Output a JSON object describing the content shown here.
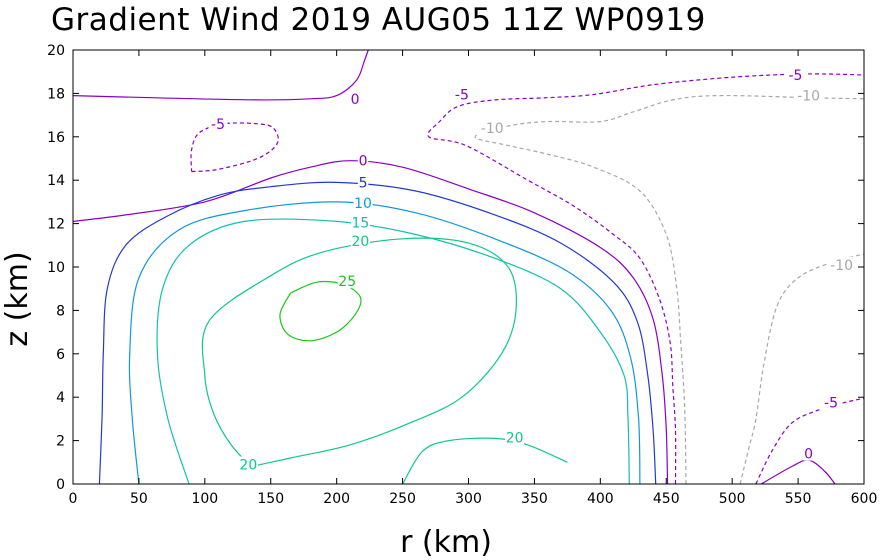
{
  "chart_data": {
    "type": "contour",
    "title": "Gradient Wind 2019 AUG05 11Z   WP0919",
    "xlabel": "r (km)",
    "ylabel": "z (km)",
    "xlim": [
      0,
      600
    ],
    "ylim": [
      0,
      20
    ],
    "xticks": [
      "0",
      "50",
      "100",
      "150",
      "200",
      "250",
      "300",
      "350",
      "400",
      "450",
      "500",
      "550",
      "600"
    ],
    "yticks": [
      "0",
      "2",
      "4",
      "6",
      "8",
      "10",
      "12",
      "14",
      "16",
      "18",
      "20"
    ],
    "contours": [
      {
        "level": 0,
        "label": "0",
        "color": "#8a00c8",
        "dashed": false,
        "points": [
          [
            0,
            12.1
          ],
          [
            40,
            12.4
          ],
          [
            100,
            13
          ],
          [
            150,
            14.1
          ],
          [
            180,
            14.6
          ],
          [
            210,
            14.9
          ],
          [
            250,
            14.6
          ],
          [
            300,
            13.6
          ],
          [
            350,
            12.5
          ],
          [
            400,
            10.9
          ],
          [
            425,
            9.5
          ],
          [
            440,
            7.6
          ],
          [
            447,
            5
          ],
          [
            450,
            2.5
          ],
          [
            451,
            0
          ]
        ]
      },
      {
        "level": 0,
        "label": "0",
        "color": "#8a00c8",
        "dashed": false,
        "points": [
          [
            0,
            17.9
          ],
          [
            60,
            17.8
          ],
          [
            140,
            17.7
          ],
          [
            180,
            17.75
          ],
          [
            200,
            17.9
          ],
          [
            215,
            18.6
          ],
          [
            221,
            19.5
          ],
          [
            224,
            20
          ]
        ]
      },
      {
        "level": 0,
        "label": "0",
        "color": "#8a00c8",
        "dashed": false,
        "points": [
          [
            522,
            0
          ],
          [
            545,
            0.8
          ],
          [
            558,
            1.1
          ],
          [
            570,
            0.6
          ],
          [
            578,
            0
          ]
        ]
      },
      {
        "level": 5,
        "label": "5",
        "color": "#2238d6",
        "dashed": false,
        "points": [
          [
            20,
            0
          ],
          [
            22,
            3
          ],
          [
            23,
            6
          ],
          [
            26,
            9
          ],
          [
            40,
            11
          ],
          [
            70,
            12.3
          ],
          [
            110,
            13.3
          ],
          [
            150,
            13.7
          ],
          [
            200,
            13.9
          ],
          [
            260,
            13.5
          ],
          [
            320,
            12.4
          ],
          [
            370,
            11.1
          ],
          [
            410,
            9.3
          ],
          [
            428,
            7.5
          ],
          [
            436,
            5
          ],
          [
            440,
            2.5
          ],
          [
            442,
            0
          ]
        ]
      },
      {
        "level": 10,
        "label": "10",
        "color": "#0f98e0",
        "dashed": false,
        "points": [
          [
            50,
            0
          ],
          [
            45,
            3
          ],
          [
            43,
            6
          ],
          [
            50,
            9.5
          ],
          [
            80,
            11.7
          ],
          [
            130,
            12.6
          ],
          [
            200,
            13
          ],
          [
            260,
            12.5
          ],
          [
            320,
            11.3
          ],
          [
            375,
            9.8
          ],
          [
            408,
            8
          ],
          [
            423,
            5.8
          ],
          [
            429,
            3
          ],
          [
            430,
            0
          ]
        ]
      },
      {
        "level": 15,
        "label": "15",
        "color": "#12c0b0",
        "dashed": false,
        "points": [
          [
            88,
            0
          ],
          [
            72,
            3
          ],
          [
            64,
            6
          ],
          [
            68,
            9
          ],
          [
            88,
            11
          ],
          [
            130,
            12.1
          ],
          [
            200,
            12.1
          ],
          [
            260,
            11.5
          ],
          [
            320,
            10.4
          ],
          [
            370,
            9
          ],
          [
            400,
            7
          ],
          [
            418,
            5
          ],
          [
            421,
            3
          ],
          [
            422,
            0
          ]
        ]
      },
      {
        "level": 20,
        "label": "20",
        "color": "#10c88a",
        "dashed": false,
        "points": [
          [
            135,
            0.8
          ],
          [
            165,
            1.2
          ],
          [
            210,
            1.8
          ],
          [
            255,
            2.8
          ],
          [
            295,
            4
          ],
          [
            325,
            6
          ],
          [
            336,
            8
          ],
          [
            330,
            10
          ],
          [
            300,
            11.1
          ],
          [
            250,
            11.3
          ],
          [
            190,
            10.7
          ],
          [
            150,
            9.6
          ],
          [
            103,
            7.5
          ],
          [
            100,
            5
          ],
          [
            107,
            3.2
          ],
          [
            120,
            1.8
          ],
          [
            135,
            0.8
          ]
        ]
      },
      {
        "level": 20,
        "label": "20",
        "color": "#10c88a",
        "dashed": false,
        "points": [
          [
            250,
            0
          ],
          [
            265,
            1.5
          ],
          [
            285,
            2
          ],
          [
            320,
            2.1
          ],
          [
            345,
            1.8
          ],
          [
            375,
            1
          ]
        ]
      },
      {
        "level": 25,
        "label": "25",
        "color": "#18c818",
        "dashed": false,
        "points": [
          [
            165,
            8.8
          ],
          [
            185,
            9.3
          ],
          [
            205,
            9.2
          ],
          [
            218,
            8.6
          ],
          [
            214,
            7.8
          ],
          [
            200,
            7
          ],
          [
            180,
            6.6
          ],
          [
            163,
            6.9
          ],
          [
            157,
            7.8
          ],
          [
            165,
            8.8
          ]
        ]
      },
      {
        "level": -5,
        "label": "-5",
        "color": "#8a00c8",
        "dashed": true,
        "points": [
          [
            457,
            0
          ],
          [
            457,
            2.5
          ],
          [
            455,
            4.5
          ],
          [
            453,
            6.5
          ],
          [
            445,
            8.5
          ],
          [
            430,
            10.4
          ],
          [
            410,
            11.5
          ],
          [
            380,
            12.8
          ],
          [
            345,
            14
          ],
          [
            298,
            15.6
          ],
          [
            270,
            16
          ],
          [
            278,
            16.7
          ],
          [
            292,
            17.4
          ],
          [
            320,
            17.7
          ],
          [
            360,
            17.8
          ],
          [
            395,
            17.95
          ],
          [
            440,
            18.4
          ],
          [
            490,
            18.7
          ],
          [
            530,
            18.85
          ],
          [
            565,
            18.9
          ],
          [
            600,
            18.85
          ]
        ]
      },
      {
        "level": -5,
        "label": "-5",
        "color": "#8a00c8",
        "dashed": true,
        "points": [
          [
            90,
            14.4
          ],
          [
            110,
            14.5
          ],
          [
            140,
            15
          ],
          [
            155,
            15.7
          ],
          [
            152,
            16.4
          ],
          [
            140,
            16.6
          ],
          [
            115,
            16.6
          ],
          [
            96,
            16.2
          ],
          [
            90,
            15.4
          ],
          [
            90,
            14.4
          ]
        ]
      },
      {
        "level": -5,
        "label": "-5",
        "color": "#8a00c8",
        "dashed": true,
        "points": [
          [
            518,
            0
          ],
          [
            530,
            1.5
          ],
          [
            545,
            2.8
          ],
          [
            565,
            3.4
          ],
          [
            585,
            3.75
          ],
          [
            600,
            3.95
          ]
        ]
      },
      {
        "level": -10,
        "label": "-10",
        "color": "#a8a8a8",
        "dashed": true,
        "points": [
          [
            465,
            0
          ],
          [
            464,
            3.5
          ],
          [
            461,
            6.5
          ],
          [
            458,
            9
          ],
          [
            450,
            11.5
          ],
          [
            430,
            13.5
          ],
          [
            395,
            14.6
          ],
          [
            360,
            15.2
          ],
          [
            330,
            15.6
          ],
          [
            305,
            16
          ],
          [
            330,
            16.5
          ],
          [
            360,
            16.7
          ],
          [
            400,
            16.7
          ],
          [
            425,
            17.15
          ],
          [
            455,
            17.7
          ],
          [
            490,
            17.9
          ],
          [
            560,
            17.8
          ],
          [
            600,
            17.75
          ]
        ]
      },
      {
        "level": -10,
        "label": "-10",
        "color": "#a8a8a8",
        "dashed": true,
        "points": [
          [
            506,
            0
          ],
          [
            512,
            1.5
          ],
          [
            518,
            3
          ],
          [
            524,
            5.5
          ],
          [
            534,
            8.2
          ],
          [
            550,
            9.5
          ],
          [
            575,
            10.2
          ],
          [
            600,
            10.6
          ]
        ]
      }
    ],
    "contour_labels": [
      {
        "text": "0",
        "r": 214,
        "z": 17.75,
        "color": "#8a00c8"
      },
      {
        "text": "0",
        "r": 220,
        "z": 14.9,
        "color": "#8a00c8"
      },
      {
        "text": "0",
        "r": 558,
        "z": 1.4,
        "color": "#8a00c8"
      },
      {
        "text": "5",
        "r": 220,
        "z": 13.9,
        "color": "#2238d6"
      },
      {
        "text": "10",
        "r": 220,
        "z": 12.95,
        "color": "#0f98e0"
      },
      {
        "text": "15",
        "r": 218,
        "z": 12.05,
        "color": "#12c0b0"
      },
      {
        "text": "20",
        "r": 218,
        "z": 11.2,
        "color": "#10c88a"
      },
      {
        "text": "20",
        "r": 335,
        "z": 2.15,
        "color": "#10c88a"
      },
      {
        "text": "20",
        "r": 133,
        "z": 0.9,
        "color": "#10c88a"
      },
      {
        "text": "25",
        "r": 208,
        "z": 9.35,
        "color": "#18c818"
      },
      {
        "text": "-5",
        "r": 295,
        "z": 17.95,
        "color": "#8a00c8"
      },
      {
        "text": "-5",
        "r": 110,
        "z": 16.6,
        "color": "#8a00c8"
      },
      {
        "text": "-5",
        "r": 548,
        "z": 18.85,
        "color": "#8a00c8"
      },
      {
        "text": "-5",
        "r": 575,
        "z": 3.75,
        "color": "#8a00c8"
      },
      {
        "text": "-10",
        "r": 318,
        "z": 16.4,
        "color": "#a8a8a8"
      },
      {
        "text": "-10",
        "r": 558,
        "z": 17.9,
        "color": "#a8a8a8"
      },
      {
        "text": "-10",
        "r": 583,
        "z": 10.1,
        "color": "#a8a8a8"
      }
    ]
  }
}
